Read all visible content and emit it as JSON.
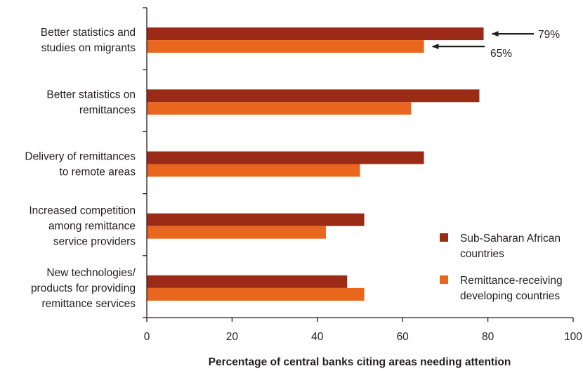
{
  "chart_data": {
    "type": "bar",
    "orientation": "horizontal",
    "categories": [
      [
        "Better statistics and",
        "studies on migrants"
      ],
      [
        "Better statistics on",
        "remittances"
      ],
      [
        "Delivery of remittances",
        "to remote areas"
      ],
      [
        "Increased competition",
        "among remittance",
        "service providers"
      ],
      [
        "New technologies/",
        "products for providing",
        "remittance services"
      ]
    ],
    "series": [
      {
        "name": "Sub-Saharan African countries",
        "legend_lines": [
          "Sub-Saharan African",
          "countries"
        ],
        "color": "#9b2a16",
        "values": [
          79,
          78,
          65,
          51,
          47
        ]
      },
      {
        "name": "Remittance-receiving developing countries",
        "legend_lines": [
          "Remittance-receiving",
          "developing countries"
        ],
        "color": "#e9661f",
        "values": [
          65,
          62,
          50,
          42,
          51
        ]
      }
    ],
    "xlabel": "Percentage of central banks citing areas needing attention",
    "xlim": [
      0,
      100
    ],
    "xticks": [
      "0",
      "20",
      "40",
      "60",
      "80",
      "100"
    ],
    "annotations": [
      {
        "text": "79%",
        "series": 0,
        "category": 0
      },
      {
        "text": "65%",
        "series": 1,
        "category": 0
      }
    ],
    "legend_position": "bottom-right",
    "grid": false
  }
}
